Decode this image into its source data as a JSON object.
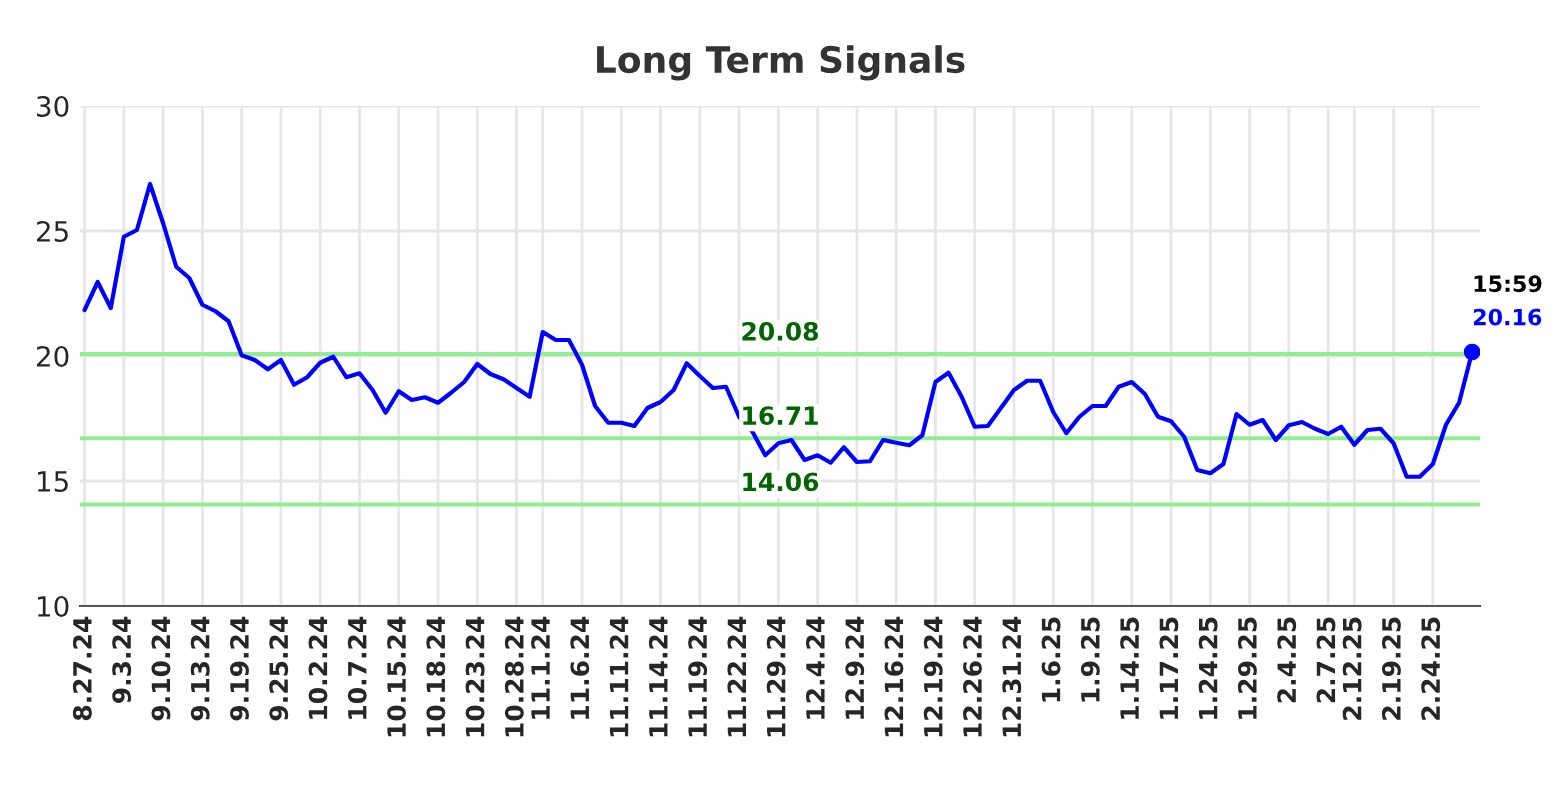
{
  "chart_data": {
    "type": "line",
    "title": "Long Term Signals",
    "categories": [
      "8.27.24",
      null,
      null,
      "9.3.24",
      null,
      null,
      "9.10.24",
      null,
      null,
      "9.13.24",
      null,
      null,
      "9.19.24",
      null,
      null,
      "9.25.24",
      null,
      null,
      "10.2.24",
      null,
      null,
      "10.7.24",
      null,
      null,
      "10.15.24",
      null,
      null,
      "10.18.24",
      null,
      null,
      "10.23.24",
      null,
      null,
      "10.28.24",
      null,
      "11.1.24",
      null,
      null,
      "11.6.24",
      null,
      null,
      "11.11.24",
      null,
      null,
      "11.14.24",
      null,
      null,
      "11.19.24",
      null,
      null,
      "11.22.24",
      null,
      null,
      "11.29.24",
      null,
      null,
      "12.4.24",
      null,
      null,
      "12.9.24",
      null,
      null,
      "12.16.24",
      null,
      null,
      "12.19.24",
      null,
      null,
      "12.26.24",
      null,
      null,
      "12.31.24",
      null,
      null,
      "1.6.25",
      null,
      null,
      "1.9.25",
      null,
      null,
      "1.14.25",
      null,
      null,
      "1.17.25",
      null,
      null,
      "1.24.25",
      null,
      null,
      "1.29.25",
      null,
      null,
      "2.4.25",
      null,
      null,
      "2.7.25",
      null,
      "2.12.25",
      null,
      null,
      "2.19.25",
      null,
      null,
      "2.24.25",
      null,
      null,
      null
    ],
    "series": [
      {
        "color": "#0000ff",
        "values": [
          21.84,
          22.96,
          21.92,
          24.77,
          25.04,
          26.88,
          25.31,
          23.57,
          23.12,
          22.05,
          21.79,
          21.39,
          20.03,
          19.84,
          19.47,
          19.84,
          18.85,
          19.15,
          19.73,
          19.97,
          19.15,
          19.31,
          18.64,
          17.73,
          18.59,
          18.24,
          18.35,
          18.13,
          18.53,
          18.96,
          19.68,
          19.28,
          19.07,
          18.72,
          18.37,
          20.96,
          20.64,
          20.64,
          19.65,
          18.0,
          17.33,
          17.33,
          17.2,
          17.92,
          18.16,
          18.64,
          19.71,
          19.2,
          18.72,
          18.77,
          17.57,
          16.99,
          16.03,
          16.51,
          16.64,
          15.84,
          16.03,
          15.73,
          16.35,
          15.76,
          15.79,
          16.64,
          16.53,
          16.43,
          16.83,
          18.96,
          19.33,
          18.37,
          17.17,
          17.2,
          17.92,
          18.64,
          19.01,
          19.01,
          17.76,
          16.91,
          17.57,
          18.0,
          18.0,
          18.77,
          18.96,
          18.48,
          17.57,
          17.39,
          16.77,
          15.44,
          15.31,
          15.68,
          17.68,
          17.25,
          17.44,
          16.64,
          17.23,
          17.36,
          17.09,
          16.88,
          17.17,
          16.45,
          17.04,
          17.09,
          16.51,
          15.17,
          15.17,
          15.68,
          17.25,
          18.13,
          20.16
        ]
      }
    ],
    "ylim": [
      10,
      30
    ],
    "yticks": [
      10,
      15,
      20,
      25,
      30
    ],
    "grid": true,
    "marker": "none",
    "line_style": "solid",
    "legend": false,
    "ref_lines": [
      {
        "axis": "y",
        "value": 20.08,
        "label": "20.08",
        "color": "#90ee90"
      },
      {
        "axis": "y",
        "value": 16.71,
        "label": "16.71",
        "color": "#90ee90"
      },
      {
        "axis": "y",
        "value": 14.06,
        "label": "14.06",
        "color": "#90ee90"
      }
    ],
    "annotations": [
      "15:59",
      "20.16"
    ]
  }
}
